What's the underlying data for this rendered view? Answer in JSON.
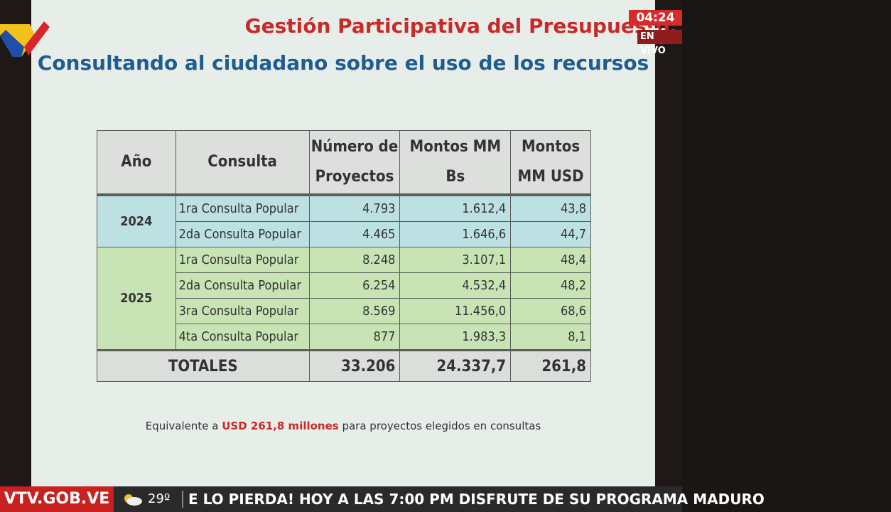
{
  "slide": {
    "title": "Gestión Participativa del Presupuesto:",
    "subtitle": "Consultando al ciudadano sobre el uso de los recursos",
    "table": {
      "headers": [
        "Año",
        "Consulta",
        "Número de Proyectos",
        "Montos MM Bs",
        "Montos MM USD"
      ],
      "rows": [
        {
          "year": "2024",
          "consulta": "1ra  Consulta Popular",
          "proyectos": "4.793",
          "bs": "1.612,4",
          "usd": "43,8"
        },
        {
          "year": "2024",
          "consulta": "2da  Consulta Popular",
          "proyectos": "4.465",
          "bs": "1.646,6",
          "usd": "44,7"
        },
        {
          "year": "2025",
          "consulta": "1ra  Consulta Popular",
          "proyectos": "8.248",
          "bs": "3.107,1",
          "usd": "48,4"
        },
        {
          "year": "2025",
          "consulta": "2da  Consulta Popular",
          "proyectos": "6.254",
          "bs": "4.532,4",
          "usd": "48,2"
        },
        {
          "year": "2025",
          "consulta": "3ra  Consulta Popular",
          "proyectos": "8.569",
          "bs": "11.456,0",
          "usd": "68,6"
        },
        {
          "year": "2025",
          "consulta": "4ta  Consulta Popular",
          "proyectos": "877",
          "bs": "1.983,3",
          "usd": "8,1"
        }
      ],
      "totals": {
        "label": "TOTALES",
        "proyectos": "33.206",
        "bs": "24.337,7",
        "usd": "261,8"
      }
    },
    "footnote": {
      "before": "Equivalente a ",
      "highlight": "USD 261,8 millones",
      "after": " para proyectos elegidos en consultas"
    }
  },
  "overlay": {
    "clock": "04:24 PM",
    "live_label": "EN VIVO",
    "brand": "VTV.GOB.VE",
    "weather_icon": "partly-cloudy-icon",
    "temperature": "29º",
    "ticker": "E LO PIERDA!  HOY A LAS 7:00 PM DISFRUTE DE SU PROGRAMA MADURO"
  },
  "colors": {
    "title_red": "#c82a2a",
    "subtitle_blue": "#1f5c93",
    "row_2024": "#bde0e2",
    "row_2025": "#c8e4b5",
    "brand_red": "#c92020"
  }
}
